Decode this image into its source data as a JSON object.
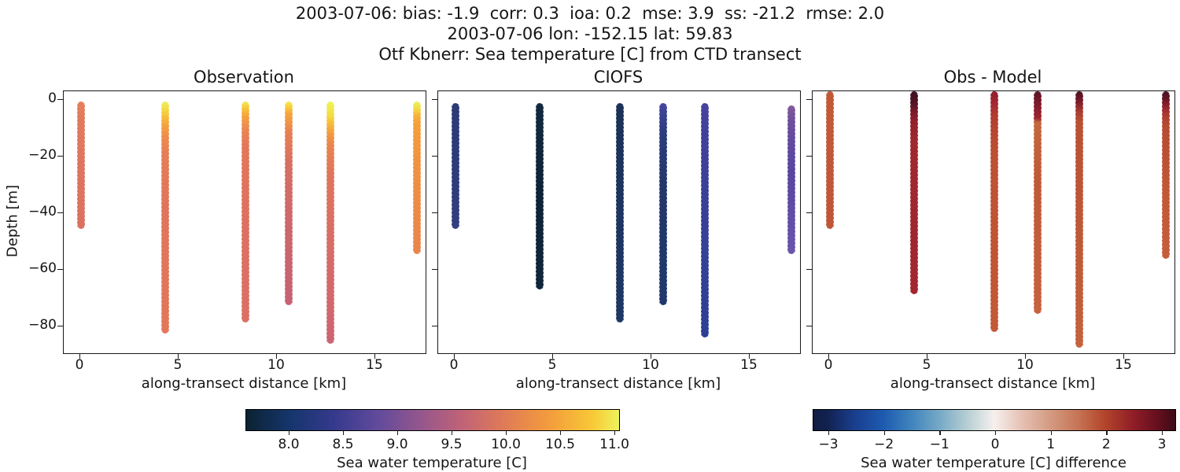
{
  "suptitle": {
    "line1": "2003-07-06: bias: -1.9  corr: 0.3  ioa: 0.2  mse: 3.9  ss: -21.2  rmse: 2.0",
    "line2": "2003-07-06 lon: -152.15 lat: 59.83",
    "line3": "Otf Kbnerr: Sea temperature [C] from CTD transect"
  },
  "axes": {
    "xlabel": "along-transect distance [km]",
    "ylabel": "Depth [m]",
    "x_ticks": [
      "0",
      "5",
      "10",
      "15"
    ],
    "y_ticks": [
      "0",
      "−20",
      "−40",
      "−60",
      "−80"
    ]
  },
  "panels": [
    {
      "title": "Observation",
      "columns": [
        {
          "x_km": 0.05,
          "top_m": 0.5,
          "bottom_m": 45.5,
          "stops": [
            [
              0,
              "#e6805a"
            ],
            [
              15,
              "#e07a5e"
            ],
            [
              100,
              "#dc7061"
            ]
          ]
        },
        {
          "x_km": 4.3,
          "top_m": 0.5,
          "bottom_m": 82.5,
          "stops": [
            [
              0,
              "#ebf25d"
            ],
            [
              3,
              "#f3dd47"
            ],
            [
              6,
              "#f7c23a"
            ],
            [
              10,
              "#f5a33e"
            ],
            [
              15,
              "#ee8c4b"
            ],
            [
              22,
              "#e67e55"
            ],
            [
              45,
              "#e1745c"
            ],
            [
              100,
              "#e3775a"
            ]
          ]
        },
        {
          "x_km": 8.4,
          "top_m": 0.5,
          "bottom_m": 78.5,
          "stops": [
            [
              0,
              "#f0ee55"
            ],
            [
              3,
              "#f7c63a"
            ],
            [
              7,
              "#f5a03f"
            ],
            [
              12,
              "#ec8850"
            ],
            [
              20,
              "#e2775a"
            ],
            [
              60,
              "#dc7062"
            ],
            [
              100,
              "#da7066"
            ]
          ]
        },
        {
          "x_km": 10.6,
          "top_m": 0.5,
          "bottom_m": 72.5,
          "stops": [
            [
              0,
              "#f2ee52"
            ],
            [
              3,
              "#f8ca39"
            ],
            [
              6,
              "#f5a43d"
            ],
            [
              11,
              "#f09246"
            ],
            [
              15,
              "#e68053"
            ],
            [
              30,
              "#d87062"
            ],
            [
              60,
              "#cd676d"
            ],
            [
              100,
              "#c66273"
            ]
          ]
        },
        {
          "x_km": 12.7,
          "top_m": 0.5,
          "bottom_m": 86.0,
          "stops": [
            [
              0,
              "#eef45b"
            ],
            [
              6,
              "#f3dc45"
            ],
            [
              9,
              "#f7bb3a"
            ],
            [
              13,
              "#f29c40"
            ],
            [
              18,
              "#e9854f"
            ],
            [
              30,
              "#df755c"
            ],
            [
              65,
              "#d56c69"
            ],
            [
              100,
              "#cc6572"
            ]
          ]
        },
        {
          "x_km": 17.1,
          "top_m": 0.5,
          "bottom_m": 54.5,
          "stops": [
            [
              0,
              "#eaf25e"
            ],
            [
              5,
              "#f3d945"
            ],
            [
              9,
              "#f6b53b"
            ],
            [
              14,
              "#f5a03c"
            ],
            [
              40,
              "#f09240"
            ],
            [
              75,
              "#ec8947"
            ],
            [
              100,
              "#e9854b"
            ]
          ]
        }
      ]
    },
    {
      "title": "CIOFS",
      "columns": [
        {
          "x_km": 0.05,
          "top_m": 1.0,
          "bottom_m": 45.5,
          "stops": [
            [
              0,
              "#2b3a74"
            ],
            [
              60,
              "#2e3c7a"
            ],
            [
              100,
              "#343e82"
            ]
          ]
        },
        {
          "x_km": 4.3,
          "top_m": 1.0,
          "bottom_m": 67.0,
          "stops": [
            [
              0,
              "#13293f"
            ],
            [
              50,
              "#102438"
            ],
            [
              100,
              "#112639"
            ]
          ]
        },
        {
          "x_km": 8.4,
          "top_m": 1.0,
          "bottom_m": 78.5,
          "stops": [
            [
              0,
              "#1c3157"
            ],
            [
              50,
              "#1d3560"
            ],
            [
              100,
              "#1e3763"
            ]
          ]
        },
        {
          "x_km": 10.6,
          "top_m": 1.0,
          "bottom_m": 72.5,
          "stops": [
            [
              0,
              "#4645a2"
            ],
            [
              6,
              "#3a4290"
            ],
            [
              15,
              "#2c3c7c"
            ],
            [
              40,
              "#22386b"
            ],
            [
              100,
              "#20386b"
            ]
          ]
        },
        {
          "x_km": 12.7,
          "top_m": 1.0,
          "bottom_m": 84.0,
          "stops": [
            [
              0,
              "#45429c"
            ],
            [
              30,
              "#3c4097"
            ],
            [
              100,
              "#2d3f94"
            ]
          ]
        },
        {
          "x_km": 17.1,
          "top_m": 2.0,
          "bottom_m": 54.5,
          "stops": [
            [
              0,
              "#85599b"
            ],
            [
              12,
              "#6c4e9f"
            ],
            [
              45,
              "#5846a0"
            ],
            [
              100,
              "#6b54ad"
            ]
          ]
        }
      ]
    },
    {
      "title": "Obs - Model",
      "columns": [
        {
          "x_km": 0.05,
          "top_m": -3.0,
          "bottom_m": 45.5,
          "stops": [
            [
              0,
              "#c25936"
            ],
            [
              100,
              "#bf5639"
            ]
          ]
        },
        {
          "x_km": 4.3,
          "top_m": -3.0,
          "bottom_m": 68.5,
          "stops": [
            [
              0,
              "#3f1020"
            ],
            [
              6,
              "#551324"
            ],
            [
              10,
              "#7a192a"
            ],
            [
              15,
              "#94202d"
            ],
            [
              25,
              "#9e282d"
            ],
            [
              100,
              "#a2252f"
            ]
          ]
        },
        {
          "x_km": 8.4,
          "top_m": -3.0,
          "bottom_m": 82.0,
          "stops": [
            [
              0,
              "#8d1e2d"
            ],
            [
              5,
              "#a42732"
            ],
            [
              10,
              "#b23c2f"
            ],
            [
              25,
              "#bd5033"
            ],
            [
              100,
              "#c35936"
            ]
          ]
        },
        {
          "x_km": 10.6,
          "top_m": -3.0,
          "bottom_m": 75.5,
          "stops": [
            [
              0,
              "#571425"
            ],
            [
              5,
              "#7c192a"
            ],
            [
              12,
              "#9e2430"
            ],
            [
              14,
              "#c3683f"
            ],
            [
              40,
              "#bf5a37"
            ],
            [
              100,
              "#c66240"
            ]
          ]
        },
        {
          "x_km": 12.7,
          "top_m": -3.0,
          "bottom_m": 87.5,
          "stops": [
            [
              0,
              "#481121"
            ],
            [
              4,
              "#7c1b2a"
            ],
            [
              8,
              "#aa3c31"
            ],
            [
              12,
              "#ba5134"
            ],
            [
              60,
              "#bf5a37"
            ],
            [
              100,
              "#c6613d"
            ]
          ]
        },
        {
          "x_km": 17.1,
          "top_m": -3.0,
          "bottom_m": 56.0,
          "stops": [
            [
              0,
              "#471021"
            ],
            [
              5,
              "#6b1627"
            ],
            [
              9,
              "#90202d"
            ],
            [
              13,
              "#a83631"
            ],
            [
              20,
              "#b54c32"
            ],
            [
              60,
              "#c15836"
            ],
            [
              100,
              "#c55e3c"
            ]
          ]
        }
      ]
    }
  ],
  "colorbars": [
    {
      "label": "Sea water temperature [C]",
      "ticks": [
        "8.0",
        "8.5",
        "9.0",
        "9.5",
        "10.0",
        "10.5",
        "11.0"
      ],
      "gradient": [
        [
          0,
          "#0c2231"
        ],
        [
          11.6,
          "#15356c"
        ],
        [
          23.2,
          "#34398c"
        ],
        [
          34.8,
          "#5f4a9c"
        ],
        [
          46.4,
          "#93568d"
        ],
        [
          58,
          "#c16377"
        ],
        [
          69.6,
          "#e07c55"
        ],
        [
          81.2,
          "#f39c3d"
        ],
        [
          92.8,
          "#f8c837"
        ],
        [
          100,
          "#edf45c"
        ]
      ]
    },
    {
      "label": "Sea water temperature [C] difference",
      "ticks": [
        "−3",
        "−2",
        "−1",
        "0",
        "1",
        "2",
        "3"
      ],
      "gradient": [
        [
          0,
          "#101c44"
        ],
        [
          3.8,
          "#12214f"
        ],
        [
          11.5,
          "#1a3f8f"
        ],
        [
          19.2,
          "#1d5ab0"
        ],
        [
          26.9,
          "#3f83bd"
        ],
        [
          34.6,
          "#74a8c6"
        ],
        [
          42.3,
          "#b5cdd3"
        ],
        [
          50,
          "#f6f0ee"
        ],
        [
          57.7,
          "#e5c0b2"
        ],
        [
          65.4,
          "#d49b82"
        ],
        [
          73.1,
          "#c67455"
        ],
        [
          80.8,
          "#b2432a"
        ],
        [
          88.5,
          "#8f1d27"
        ],
        [
          96.2,
          "#5e0d1d"
        ],
        [
          100,
          "#3b0a15"
        ]
      ]
    }
  ],
  "chart_data": {
    "type": "scatter",
    "title": "Otf Kbnerr: Sea temperature [C] from CTD transect",
    "subtitle": "2003-07-06 lon: -152.15 lat: 59.83",
    "stats": {
      "date": "2003-07-06",
      "bias": -1.9,
      "corr": 0.3,
      "ioa": 0.2,
      "mse": 3.9,
      "ss": -21.2,
      "rmse": 2.0
    },
    "xlabel": "along-transect distance [km]",
    "ylabel": "Depth [m]",
    "xlim": [
      -0.9,
      18.0
    ],
    "ylim": [
      -90,
      3
    ],
    "x_ticks": [
      0,
      5,
      10,
      15
    ],
    "y_ticks": [
      0,
      -20,
      -40,
      -60,
      -80
    ],
    "station_x_km": [
      0.05,
      4.3,
      8.4,
      10.6,
      12.7,
      17.1
    ],
    "panels": [
      {
        "name": "Observation",
        "colormap": "thermal",
        "clim": [
          7.6,
          11.05
        ],
        "profiles": [
          {
            "x_km": 0.05,
            "depth_range_m": [
              -0.5,
              -45.5
            ],
            "surface_C": 9.9,
            "bottom_C": 9.8
          },
          {
            "x_km": 4.3,
            "depth_range_m": [
              -0.5,
              -82.5
            ],
            "surface_C": 11.0,
            "bottom_C": 9.9
          },
          {
            "x_km": 8.4,
            "depth_range_m": [
              -0.5,
              -78.5
            ],
            "surface_C": 10.9,
            "bottom_C": 9.7
          },
          {
            "x_km": 10.6,
            "depth_range_m": [
              -0.5,
              -72.5
            ],
            "surface_C": 11.0,
            "bottom_C": 9.4
          },
          {
            "x_km": 12.7,
            "depth_range_m": [
              -0.5,
              -86.0
            ],
            "surface_C": 11.0,
            "bottom_C": 9.5
          },
          {
            "x_km": 17.1,
            "depth_range_m": [
              -0.5,
              -54.5
            ],
            "surface_C": 11.0,
            "bottom_C": 10.2
          }
        ]
      },
      {
        "name": "CIOFS",
        "colormap": "thermal",
        "clim": [
          7.6,
          11.05
        ],
        "profiles": [
          {
            "x_km": 0.05,
            "depth_range_m": [
              -1.0,
              -45.5
            ],
            "surface_C": 8.1,
            "bottom_C": 8.1
          },
          {
            "x_km": 4.3,
            "depth_range_m": [
              -1.0,
              -67.0
            ],
            "surface_C": 7.7,
            "bottom_C": 7.7
          },
          {
            "x_km": 8.4,
            "depth_range_m": [
              -1.0,
              -78.5
            ],
            "surface_C": 7.9,
            "bottom_C": 7.9
          },
          {
            "x_km": 10.6,
            "depth_range_m": [
              -1.0,
              -72.5
            ],
            "surface_C": 8.4,
            "bottom_C": 8.0
          },
          {
            "x_km": 12.7,
            "depth_range_m": [
              -1.0,
              -84.0
            ],
            "surface_C": 8.3,
            "bottom_C": 8.3
          },
          {
            "x_km": 17.1,
            "depth_range_m": [
              -2.0,
              -54.5
            ],
            "surface_C": 8.9,
            "bottom_C": 8.6
          }
        ]
      },
      {
        "name": "Obs - Model",
        "colormap": "balance",
        "clim": [
          -3.25,
          3.25
        ],
        "profiles": [
          {
            "x_km": 0.05,
            "depth_range_m": [
              0,
              -45.5
            ],
            "surface_C": 1.8,
            "bottom_C": 1.8
          },
          {
            "x_km": 4.3,
            "depth_range_m": [
              0,
              -68.5
            ],
            "surface_C": 3.2,
            "bottom_C": 2.4
          },
          {
            "x_km": 8.4,
            "depth_range_m": [
              0,
              -82.0
            ],
            "surface_C": 2.6,
            "bottom_C": 2.0
          },
          {
            "x_km": 10.6,
            "depth_range_m": [
              0,
              -75.5
            ],
            "surface_C": 3.0,
            "bottom_C": 1.7
          },
          {
            "x_km": 12.7,
            "depth_range_m": [
              0,
              -87.5
            ],
            "surface_C": 3.2,
            "bottom_C": 1.8
          },
          {
            "x_km": 17.1,
            "depth_range_m": [
              0,
              -56.0
            ],
            "surface_C": 3.2,
            "bottom_C": 1.9
          }
        ]
      }
    ],
    "colorbars": [
      {
        "label": "Sea water temperature [C]",
        "ticks": [
          8.0,
          8.5,
          9.0,
          9.5,
          10.0,
          10.5,
          11.0
        ],
        "range": [
          7.6,
          11.05
        ]
      },
      {
        "label": "Sea water temperature [C] difference",
        "ticks": [
          -3,
          -2,
          -1,
          0,
          1,
          2,
          3
        ],
        "range": [
          -3.25,
          3.25
        ]
      }
    ]
  }
}
